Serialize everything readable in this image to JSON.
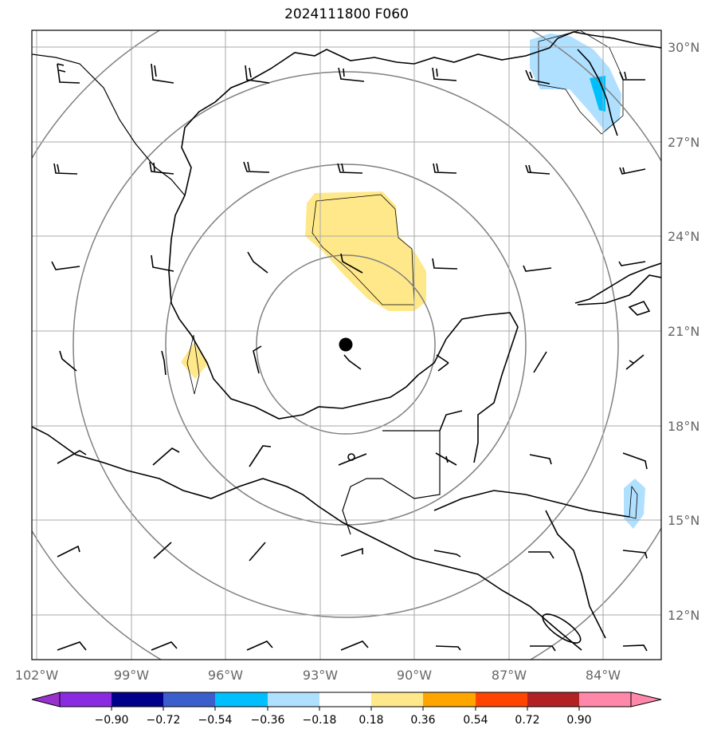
{
  "title": "2024111800 F060",
  "axes": {
    "lon_labels": [
      "102°W",
      "99°W",
      "96°W",
      "93°W",
      "90°W",
      "87°W",
      "84°W"
    ],
    "lat_labels": [
      "30°N",
      "27°N",
      "24°N",
      "21°N",
      "18°N",
      "15°N",
      "12°N"
    ],
    "lon_values": [
      -102,
      -99,
      -96,
      -93,
      -90,
      -87,
      -84
    ],
    "lat_values": [
      30,
      27,
      24,
      21,
      18,
      15,
      12
    ],
    "lon_range": [
      -101.8,
      -81.8
    ],
    "lat_range": [
      10.8,
      30.5
    ],
    "grid": true
  },
  "center_marker": {
    "lon": -92.3,
    "lat": 20.6
  },
  "range_rings": 4,
  "colorbar": {
    "labels": [
      "−0.90",
      "−0.72",
      "−0.54",
      "−0.36",
      "−0.18",
      "0.18",
      "0.36",
      "0.54",
      "0.72",
      "0.90"
    ],
    "colors": [
      "#9932cc",
      "#8a2be2",
      "#00008b",
      "#3a5fcd",
      "#00bfff",
      "#b0e0ff",
      "#ffffff",
      "#ffe88a",
      "#ffa500",
      "#ff4500",
      "#b22222",
      "#ff88aa"
    ],
    "extend": "both"
  },
  "colors": {
    "positive_fill": "#ffe88a",
    "negative_light": "#b0e0ff",
    "negative_mid": "#00bfff",
    "grid": "#a9a9a9",
    "rings": "#808080",
    "coast": "#000000"
  }
}
